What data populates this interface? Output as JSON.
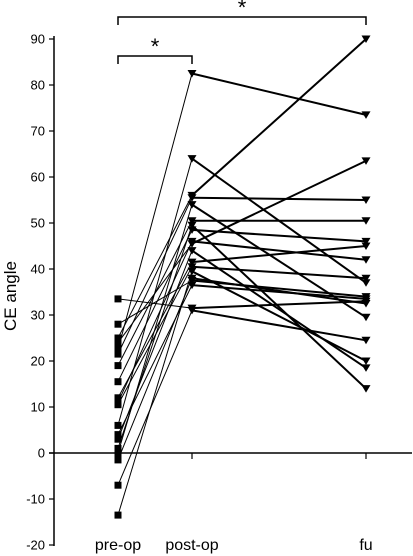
{
  "chart_data": {
    "type": "line",
    "ylabel": "CE angle",
    "categories": [
      "pre-op",
      "post-op",
      "fu"
    ],
    "ylim": [
      -20,
      90
    ],
    "yticks": [
      -20,
      -10,
      0,
      10,
      20,
      30,
      40,
      50,
      60,
      70,
      80,
      90
    ],
    "grid": false,
    "legend": "none",
    "markers": {
      "pre-op": "square",
      "post-op": "triangle-down",
      "fu": "triangle-down"
    },
    "series": [
      {
        "values": [
          33.5,
          31.5,
          33.0
        ]
      },
      {
        "values": [
          28.0,
          37.5,
          34.0
        ]
      },
      {
        "values": [
          25.0,
          56.0,
          90.0
        ]
      },
      {
        "values": [
          24.0,
          45.5,
          63.5
        ]
      },
      {
        "values": [
          22.5,
          82.5,
          73.5
        ]
      },
      {
        "values": [
          21.5,
          55.5,
          55.0
        ]
      },
      {
        "values": [
          19.0,
          50.5,
          50.5
        ]
      },
      {
        "values": [
          15.5,
          48.5,
          46.0
        ]
      },
      {
        "values": [
          12.0,
          41.5,
          45.0
        ]
      },
      {
        "values": [
          11.0,
          46.0,
          42.0
        ]
      },
      {
        "values": [
          10.5,
          40.5,
          38.0
        ]
      },
      {
        "values": [
          6.0,
          64.0,
          37.0
        ]
      },
      {
        "values": [
          4.0,
          36.5,
          33.5
        ]
      },
      {
        "values": [
          0.0,
          54.0,
          29.5
        ]
      },
      {
        "values": [
          -1.5,
          38.0,
          32.5
        ]
      },
      {
        "values": [
          -7.0,
          31.0,
          24.5
        ]
      },
      {
        "values": [
          -13.5,
          39.5,
          20.0
        ]
      },
      {
        "values": [
          3.0,
          44.0,
          18.5
        ]
      },
      {
        "values": [
          1.0,
          49.5,
          14.0
        ]
      }
    ],
    "annotations": [
      {
        "from": "pre-op",
        "to": "post-op",
        "text": "*"
      },
      {
        "from": "pre-op",
        "to": "fu",
        "text": "*"
      }
    ]
  }
}
